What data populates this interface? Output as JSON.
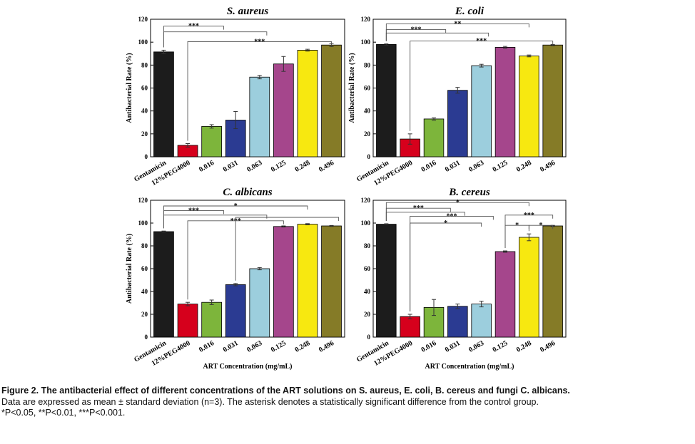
{
  "chart_data": [
    {
      "type": "bar",
      "title": "S. aureus",
      "ylabel": "Antibacterial Rate (%)",
      "xlabel": "",
      "ylim": [
        0,
        120
      ],
      "yticks": [
        0,
        20,
        40,
        60,
        80,
        100,
        120
      ],
      "categories": [
        "Gentamicin",
        "12%PEG4000",
        "0.016",
        "0.031",
        "0.063",
        "0.125",
        "0.248",
        "0.496"
      ],
      "values": [
        91.5,
        10,
        26.5,
        32,
        69.5,
        81,
        93,
        97.5
      ],
      "errors": [
        1.5,
        1.5,
        1.5,
        7.5,
        1.5,
        6.5,
        0.8,
        1.3
      ],
      "colors": [
        "#1c1c1c",
        "#d6001c",
        "#7db53b",
        "#2b3b92",
        "#9ccedd",
        "#a5468c",
        "#f7e810",
        "#857b27"
      ],
      "annotations": [
        {
          "label": "***",
          "from": 0,
          "to": 2.5,
          "level": 114
        },
        {
          "label": "",
          "from": 0,
          "to": 4.3,
          "level": 109
        },
        {
          "label": "***",
          "from": 1,
          "to": 7,
          "level": 100.5
        }
      ]
    },
    {
      "type": "bar",
      "title": "E. coli",
      "ylabel": "Antibacterial Rate (%)",
      "xlabel": "",
      "ylim": [
        0,
        120
      ],
      "yticks": [
        0,
        20,
        40,
        60,
        80,
        100,
        120
      ],
      "categories": [
        "Gentamicin",
        "12%PEG4000",
        "0.016",
        "0.031",
        "0.063",
        "0.125",
        "0.248",
        "0.496"
      ],
      "values": [
        98,
        15.5,
        33,
        58,
        79.5,
        95.5,
        88,
        97.5
      ],
      "errors": [
        0.5,
        4.5,
        1,
        2.5,
        1.2,
        0.8,
        0.8,
        0.5
      ],
      "colors": [
        "#1c1c1c",
        "#d6001c",
        "#7db53b",
        "#2b3b92",
        "#9ccedd",
        "#a5468c",
        "#f7e810",
        "#857b27"
      ],
      "annotations": [
        {
          "label": "**",
          "from": 0,
          "to": 6,
          "level": 116
        },
        {
          "label": "***",
          "from": 0,
          "to": 2.5,
          "level": 111
        },
        {
          "label": "",
          "from": 0,
          "to": 4.3,
          "level": 108
        },
        {
          "label": "***",
          "from": 1,
          "to": 7,
          "level": 101
        }
      ]
    },
    {
      "type": "bar",
      "title": "C. albicans",
      "ylabel": "Antibacterial Rate (%)",
      "xlabel": "ART Concentration (mg/mL)",
      "ylim": [
        0,
        120
      ],
      "yticks": [
        0,
        20,
        40,
        60,
        80,
        100,
        120
      ],
      "categories": [
        "Gentamicin",
        "12%PEG4000",
        "0.016",
        "0.031",
        "0.063",
        "0.125",
        "0.248",
        "0.496"
      ],
      "values": [
        92.5,
        29,
        30.5,
        46,
        60,
        97,
        99,
        97.5
      ],
      "errors": [
        0.5,
        1.5,
        2,
        1,
        1,
        0.5,
        0.5,
        0.4
      ],
      "colors": [
        "#1c1c1c",
        "#d6001c",
        "#7db53b",
        "#2b3b92",
        "#9ccedd",
        "#a5468c",
        "#f7e810",
        "#857b27"
      ],
      "annotations": [
        {
          "label": "*",
          "from": 0,
          "to": 6,
          "level": 115
        },
        {
          "label": "***",
          "from": 0,
          "to": 2.5,
          "level": 111
        },
        {
          "label": "",
          "from": 0,
          "to": 4.3,
          "level": 107
        },
        {
          "label": "***",
          "from": 1,
          "to": 5,
          "level": 102
        },
        {
          "label": "",
          "from": 3,
          "to": 7.3,
          "level": 105
        }
      ]
    },
    {
      "type": "bar",
      "title": "B. cereus",
      "ylabel": "",
      "xlabel": "ART Concentration (mg/mL)",
      "ylim": [
        0,
        120
      ],
      "yticks": [
        0,
        20,
        40,
        60,
        80,
        100,
        120
      ],
      "categories": [
        "Gentamicin",
        "12%PEG4000",
        "0.016",
        "0.031",
        "0.063",
        "0.125",
        "0.248",
        "0.496"
      ],
      "values": [
        99,
        18,
        26,
        27,
        29,
        75,
        87.5,
        97.5
      ],
      "errors": [
        0.4,
        2,
        7,
        2,
        2.5,
        0.6,
        3,
        0.5
      ],
      "colors": [
        "#1c1c1c",
        "#d6001c",
        "#7db53b",
        "#2b3b92",
        "#9ccedd",
        "#a5468c",
        "#f7e810",
        "#857b27"
      ],
      "annotations": [
        {
          "label": "*",
          "from": 0,
          "to": 6,
          "level": 118
        },
        {
          "label": "***",
          "from": 0,
          "to": 2.7,
          "level": 113
        },
        {
          "label": "",
          "from": 0,
          "to": 3.3,
          "level": 109.5
        },
        {
          "label": "***",
          "from": 1,
          "to": 4.5,
          "level": 106
        },
        {
          "label": "*",
          "from": 1,
          "to": 4,
          "level": 100
        },
        {
          "label": "***",
          "from": 5,
          "to": 7,
          "level": 107
        },
        {
          "label": "*",
          "from": 5,
          "to": 6,
          "level": 98
        },
        {
          "label": "*",
          "from": 6,
          "to": 7,
          "level": 98
        }
      ]
    }
  ],
  "caption": {
    "lead": "Figure 2. The antibacterial effect of different concentrations of the ART solutions on S. aureus, E. coli, B. cereus and fungi C. albicans.",
    "line2": "Data are expressed as mean ± standard deviation (n=3). The asterisk denotes a statistically significant difference from the control group.",
    "line3": "*P<0.05, **P<0.01,  ***P<0.001."
  }
}
